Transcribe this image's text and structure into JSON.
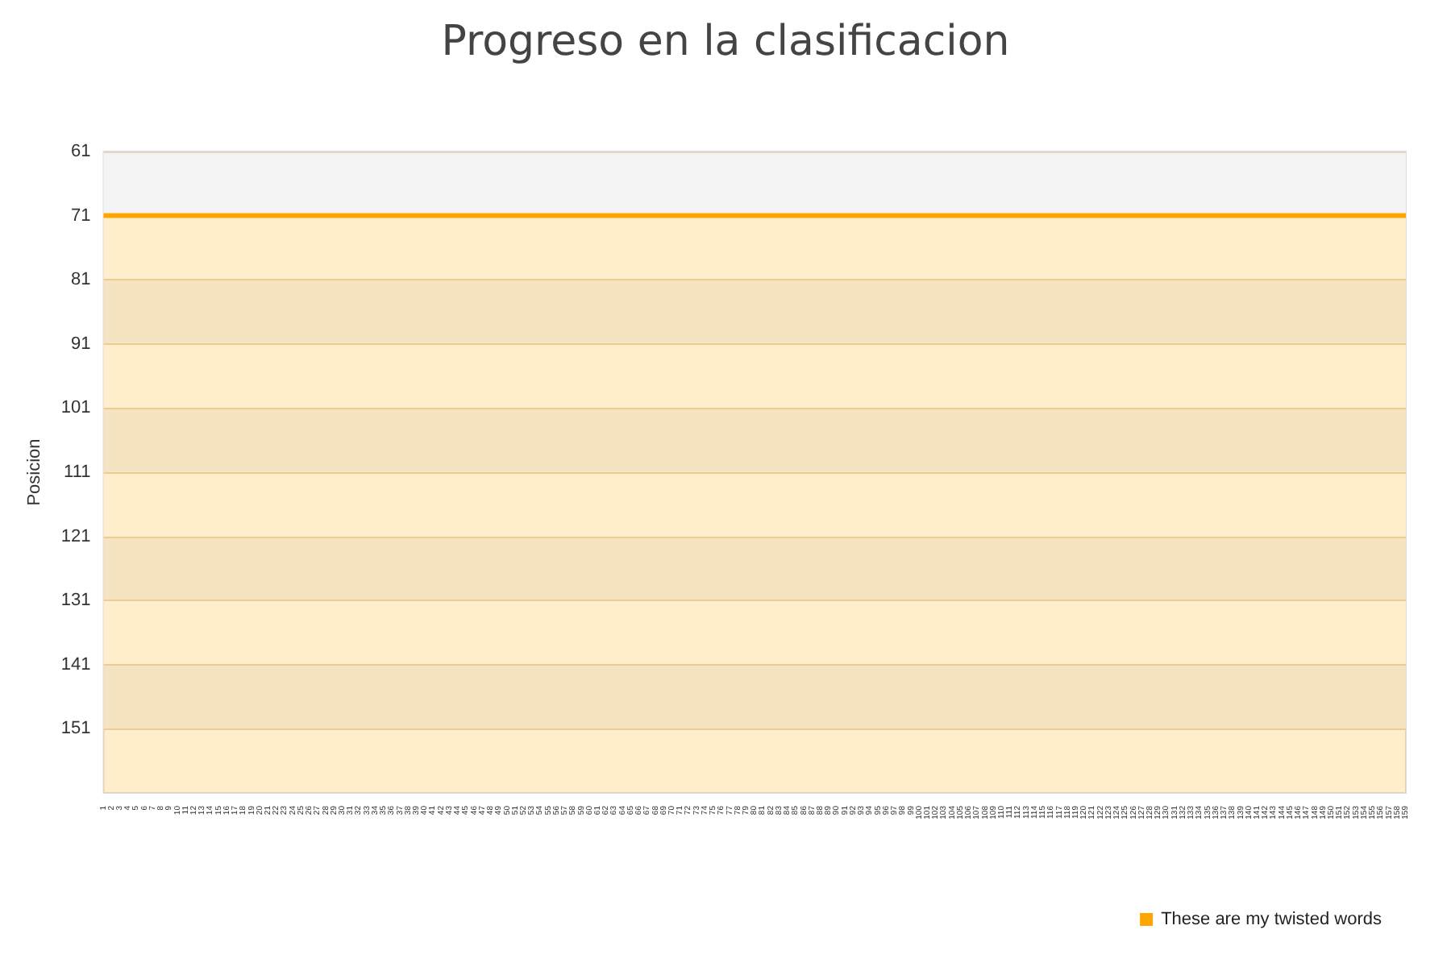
{
  "chart_data": {
    "type": "area",
    "title": "Progreso en la clasificacion",
    "ylabel": "Posicion",
    "categories": [
      "1",
      "2",
      "3",
      "4",
      "5",
      "6",
      "7",
      "8",
      "9",
      "10",
      "11",
      "12",
      "13",
      "14",
      "15",
      "16",
      "17",
      "18",
      "19",
      "20",
      "21",
      "22",
      "23",
      "24",
      "25",
      "26",
      "27",
      "28",
      "29",
      "30",
      "31",
      "32",
      "33",
      "34",
      "35",
      "36",
      "37",
      "38",
      "39",
      "40",
      "41",
      "42",
      "43",
      "44",
      "45",
      "46",
      "47",
      "48",
      "49",
      "50",
      "51",
      "52",
      "53",
      "54",
      "55",
      "56",
      "57",
      "58",
      "59",
      "60",
      "61",
      "62",
      "63",
      "64",
      "65",
      "66",
      "67",
      "68",
      "69",
      "70",
      "71",
      "72",
      "73",
      "74",
      "75",
      "76",
      "77",
      "78",
      "79",
      "80",
      "81",
      "82",
      "83",
      "84",
      "85",
      "86",
      "87",
      "88",
      "89",
      "90",
      "91",
      "92",
      "93",
      "94",
      "95",
      "96",
      "97",
      "98",
      "99",
      "100",
      "101",
      "102",
      "103",
      "104",
      "105",
      "106",
      "107",
      "108",
      "109",
      "110",
      "111",
      "112",
      "113",
      "114",
      "115",
      "116",
      "117",
      "118",
      "119",
      "120",
      "121",
      "122",
      "123",
      "124",
      "125",
      "126",
      "127",
      "128",
      "129",
      "130",
      "131",
      "132",
      "133",
      "134",
      "135",
      "136",
      "137",
      "138",
      "139",
      "140",
      "141",
      "142",
      "143",
      "144",
      "145",
      "146",
      "147",
      "148",
      "149",
      "150",
      "151",
      "152",
      "153",
      "154",
      "155",
      "156",
      "157",
      "158",
      "159"
    ],
    "series": [
      {
        "name": "These are my twisted words",
        "color": "#ffa500",
        "values": [
          71,
          71,
          71,
          71,
          71,
          71,
          71,
          71,
          71,
          71,
          71,
          71,
          71,
          71,
          71,
          71,
          71,
          71,
          71,
          71,
          71,
          71,
          71,
          71,
          71,
          71,
          71,
          71,
          71,
          71,
          71,
          71,
          71,
          71,
          71,
          71,
          71,
          71,
          71,
          71,
          71,
          71,
          71,
          71,
          71,
          71,
          71,
          71,
          71,
          71,
          71,
          71,
          71,
          71,
          71,
          71,
          71,
          71,
          71,
          71,
          71,
          71,
          71,
          71,
          71,
          71,
          71,
          71,
          71,
          71,
          71,
          71,
          71,
          71,
          71,
          71,
          71,
          71,
          71,
          71,
          71,
          71,
          71,
          71,
          71,
          71,
          71,
          71,
          71,
          71,
          71,
          71,
          71,
          71,
          71,
          71,
          71,
          71,
          71,
          71,
          71,
          71,
          71,
          71,
          71,
          71,
          71,
          71,
          71,
          71,
          71,
          71,
          71,
          71,
          71,
          71,
          71,
          71,
          71,
          71,
          71,
          71,
          71,
          71,
          71,
          71,
          71,
          71,
          71,
          71,
          71,
          71,
          71,
          71,
          71,
          71,
          71,
          71,
          71,
          71,
          71,
          71,
          71,
          71,
          71,
          71,
          71,
          71,
          71,
          71,
          71,
          71,
          71,
          71,
          71,
          71,
          71,
          71,
          71
        ]
      }
    ],
    "ylim": [
      161,
      61
    ],
    "yticks": [
      61,
      71,
      81,
      91,
      101,
      111,
      121,
      131,
      141,
      151
    ],
    "grid": "y",
    "legend": "bottom right",
    "marker": "none"
  }
}
